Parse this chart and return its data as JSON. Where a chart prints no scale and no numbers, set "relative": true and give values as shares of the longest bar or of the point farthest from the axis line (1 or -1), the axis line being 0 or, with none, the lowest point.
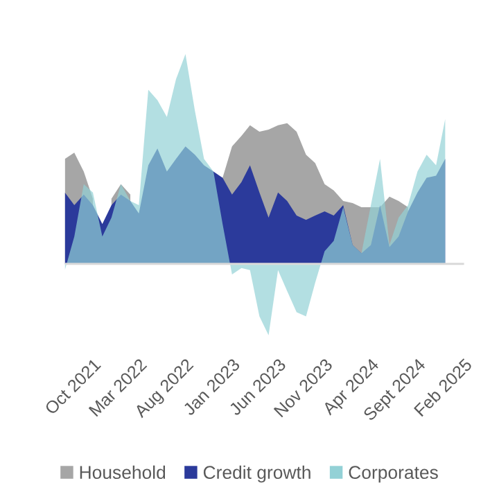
{
  "chart_data": {
    "type": "area",
    "relative": true,
    "x": [
      "2021-07",
      "2021-08",
      "2021-09",
      "2021-10",
      "2021-11",
      "2021-12",
      "2022-01",
      "2022-02",
      "2022-03",
      "2022-04",
      "2022-05",
      "2022-06",
      "2022-07",
      "2022-08",
      "2022-09",
      "2022-10",
      "2022-11",
      "2022-12",
      "2023-01",
      "2023-02",
      "2023-03",
      "2023-04",
      "2023-05",
      "2023-06",
      "2023-07",
      "2023-08",
      "2023-09",
      "2023-10",
      "2023-11",
      "2023-12",
      "2024-01",
      "2024-02",
      "2024-03",
      "2024-04",
      "2024-05",
      "2024-06",
      "2024-07",
      "2024-08",
      "2024-09",
      "2024-10",
      "2024-11",
      "2024-12"
    ],
    "xlim": [
      "2021-07-01",
      "2025-02-01"
    ],
    "xticks": [
      {
        "value": "2021-10-01",
        "label": "Oct 2021"
      },
      {
        "value": "2022-03-01",
        "label": "Mar 2022"
      },
      {
        "value": "2022-08-01",
        "label": "Aug 2022"
      },
      {
        "value": "2023-01-01",
        "label": "Jan 2023"
      },
      {
        "value": "2023-06-01",
        "label": "Jun 2023"
      },
      {
        "value": "2023-11-01",
        "label": "Nov 2023"
      },
      {
        "value": "2024-04-01",
        "label": "Apr 2024"
      },
      {
        "value": "2024-09-01",
        "label": "Sept 2024"
      },
      {
        "value": "2025-02-01",
        "label": "Feb 2025"
      }
    ],
    "series": [
      {
        "name": "Household",
        "color": "#a6a6a6",
        "values": [
          0.5,
          0.53,
          0.44,
          0.31,
          null,
          0.31,
          0.38,
          0.33,
          null,
          0.44,
          0.52,
          null,
          null,
          null,
          null,
          null,
          null,
          0.41,
          0.56,
          0.61,
          0.66,
          0.63,
          0.64,
          0.66,
          0.67,
          0.63,
          0.52,
          0.48,
          0.38,
          0.35,
          0.3,
          0.29,
          0.27,
          0.27,
          0.27,
          0.32,
          0.3,
          0.27,
          null,
          null,
          null,
          null
        ]
      },
      {
        "name": "Credit growth",
        "color": "#2b3a9b",
        "values": [
          0.34,
          0.28,
          0.33,
          0.28,
          0.19,
          0.28,
          0.33,
          0.3,
          0.24,
          0.47,
          0.55,
          0.44,
          0.5,
          0.56,
          0.52,
          0.47,
          0.44,
          0.41,
          0.33,
          0.39,
          0.47,
          0.34,
          0.22,
          0.34,
          0.3,
          0.23,
          0.21,
          0.23,
          0.25,
          0.23,
          0.28,
          0.09,
          0.05,
          0.09,
          0.28,
          0.08,
          0.13,
          0.25,
          0.34,
          0.41,
          0.42,
          0.5
        ]
      },
      {
        "name": "Corporates",
        "color": "#93d1d6",
        "values": [
          -0.03,
          0.13,
          0.38,
          0.34,
          0.13,
          0.22,
          0.38,
          0.3,
          0.28,
          0.83,
          0.78,
          0.7,
          0.88,
          1.0,
          0.73,
          0.5,
          0.44,
          0.19,
          -0.05,
          -0.02,
          -0.03,
          -0.25,
          -0.34,
          -0.03,
          -0.13,
          -0.23,
          -0.25,
          -0.09,
          0.06,
          0.11,
          0.27,
          0.09,
          0.05,
          0.28,
          0.5,
          0.09,
          0.22,
          0.28,
          0.44,
          0.52,
          0.47,
          0.69
        ]
      }
    ],
    "legend": "bottom"
  }
}
